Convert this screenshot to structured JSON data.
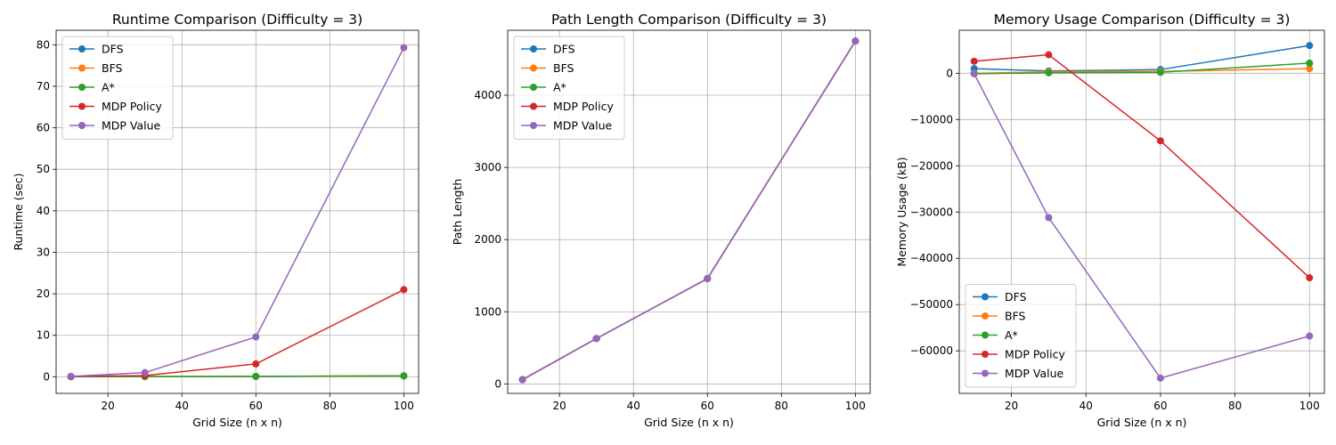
{
  "series_meta": [
    {
      "name": "DFS",
      "color": "#1f77b4"
    },
    {
      "name": "BFS",
      "color": "#ff7f0e"
    },
    {
      "name": "A*",
      "color": "#2ca02c"
    },
    {
      "name": "MDP Policy",
      "color": "#d62728"
    },
    {
      "name": "MDP Value",
      "color": "#9467bd"
    }
  ],
  "chart_data": [
    {
      "type": "line",
      "title": "Runtime Comparison (Difficulty = 3)",
      "xlabel": "Grid Size (n x n)",
      "ylabel": "Runtime (sec)",
      "x": [
        10,
        30,
        60,
        100
      ],
      "xlim": [
        6,
        104
      ],
      "ylim": [
        -4,
        83.5
      ],
      "xticks": [
        20,
        40,
        60,
        80,
        100
      ],
      "yticks": [
        0,
        10,
        20,
        30,
        40,
        50,
        60,
        70,
        80
      ],
      "xtick_labels": [
        "20",
        "40",
        "60",
        "80",
        "100"
      ],
      "ytick_labels": [
        "0",
        "10",
        "20",
        "30",
        "40",
        "50",
        "60",
        "70",
        "80"
      ],
      "grid": true,
      "legend": "upper-left",
      "series": [
        {
          "name": "DFS",
          "values": [
            0.01,
            0.05,
            0.08,
            0.2
          ]
        },
        {
          "name": "BFS",
          "values": [
            0.01,
            0.05,
            0.09,
            0.25
          ]
        },
        {
          "name": "A*",
          "values": [
            0.01,
            0.04,
            0.07,
            0.2
          ]
        },
        {
          "name": "MDP Policy",
          "values": [
            0.05,
            0.3,
            3.1,
            21.0
          ]
        },
        {
          "name": "MDP Value",
          "values": [
            0.1,
            1.0,
            9.6,
            79.3
          ]
        }
      ]
    },
    {
      "type": "line",
      "title": "Path Length Comparison (Difficulty = 3)",
      "xlabel": "Grid Size (n x n)",
      "ylabel": "Path Length",
      "x": [
        10,
        30,
        60,
        100
      ],
      "xlim": [
        6,
        104
      ],
      "ylim": [
        -130,
        4900
      ],
      "xticks": [
        20,
        40,
        60,
        80,
        100
      ],
      "yticks": [
        0,
        1000,
        2000,
        3000,
        4000
      ],
      "xtick_labels": [
        "20",
        "40",
        "60",
        "80",
        "100"
      ],
      "ytick_labels": [
        "0",
        "1000",
        "2000",
        "3000",
        "4000"
      ],
      "grid": true,
      "legend": "upper-left",
      "series": [
        {
          "name": "DFS",
          "values": [
            60,
            630,
            1460,
            4750
          ]
        },
        {
          "name": "BFS",
          "values": [
            60,
            630,
            1460,
            4750
          ]
        },
        {
          "name": "A*",
          "values": [
            60,
            630,
            1460,
            4750
          ]
        },
        {
          "name": "MDP Policy",
          "values": [
            60,
            630,
            1460,
            4750
          ]
        },
        {
          "name": "MDP Value",
          "values": [
            60,
            630,
            1460,
            4750
          ]
        }
      ]
    },
    {
      "type": "line",
      "title": "Memory Usage Comparison (Difficulty = 3)",
      "xlabel": "Grid Size (n x n)",
      "ylabel": "Memory Usage (kB)",
      "x": [
        10,
        30,
        60,
        100
      ],
      "xlim": [
        6,
        104
      ],
      "ylim": [
        -69200,
        9300
      ],
      "xticks": [
        20,
        40,
        60,
        80,
        100
      ],
      "yticks": [
        -60000,
        -50000,
        -40000,
        -30000,
        -20000,
        -10000,
        0
      ],
      "xtick_labels": [
        "20",
        "40",
        "60",
        "80",
        "100"
      ],
      "ytick_labels": [
        "−60000",
        "−50000",
        "−40000",
        "−30000",
        "−20000",
        "−10000",
        "0"
      ],
      "grid": true,
      "legend": "lower-left",
      "series": [
        {
          "name": "DFS",
          "values": [
            1000,
            500,
            800,
            6000
          ]
        },
        {
          "name": "BFS",
          "values": [
            0,
            300,
            400,
            1000
          ]
        },
        {
          "name": "A*",
          "values": [
            -100,
            100,
            200,
            2200
          ]
        },
        {
          "name": "MDP Policy",
          "values": [
            2600,
            4000,
            -14600,
            -44200
          ]
        },
        {
          "name": "MDP Value",
          "values": [
            -100,
            -31200,
            -65900,
            -56800
          ]
        }
      ]
    }
  ]
}
